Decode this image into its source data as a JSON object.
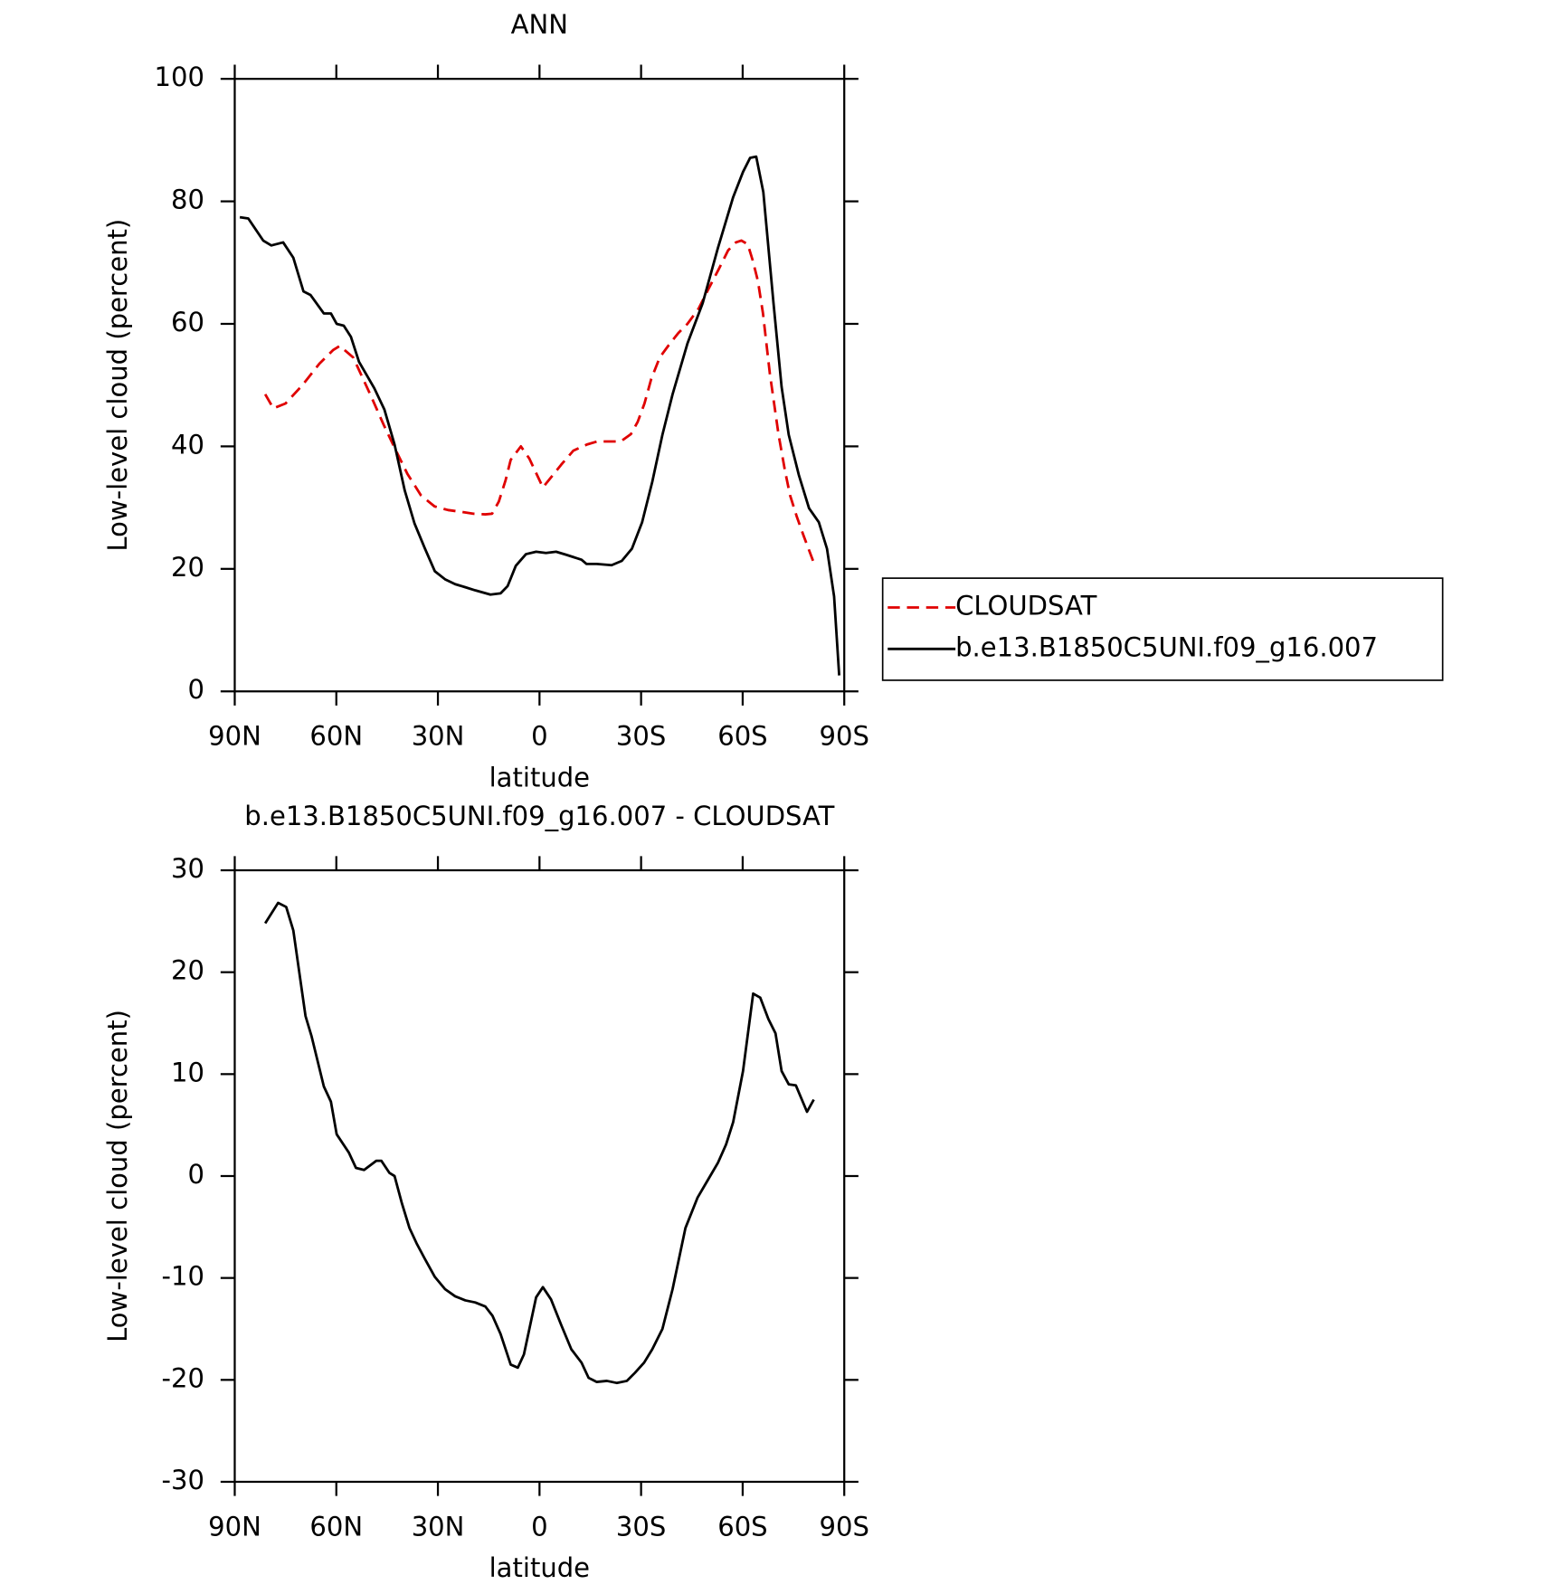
{
  "chart_data": [
    {
      "type": "line",
      "title": "ANN",
      "xlabel": "latitude",
      "ylabel": "Low-level cloud (percent)",
      "xlim": [
        90,
        -90
      ],
      "xticks": [
        {
          "value": 90,
          "label": "90N"
        },
        {
          "value": 60,
          "label": "60N"
        },
        {
          "value": 30,
          "label": "30N"
        },
        0,
        {
          "value": -30,
          "label": "30S"
        },
        {
          "value": -60,
          "label": "60S"
        },
        {
          "value": -90,
          "label": "90S"
        }
      ],
      "ylim": [
        0,
        100
      ],
      "yticks": [
        0,
        20,
        40,
        60,
        80,
        100
      ],
      "legend": "right",
      "series": [
        {
          "name": "CLOUDSAT",
          "color": "#e00000",
          "dashed": true,
          "x": [
            81,
            78.6,
            75,
            70,
            65,
            61,
            59,
            55,
            50,
            46,
            43,
            39,
            35,
            31,
            27,
            23,
            19.5,
            16,
            14,
            12,
            10,
            8.5,
            5.5,
            3,
            -1,
            -3.5,
            -6.4,
            -10,
            -14,
            -17,
            -21,
            -24,
            -27,
            -29,
            -31,
            -33,
            -35.5,
            -38,
            -41,
            -43.7,
            -47,
            -50,
            -53,
            -55.7,
            -58,
            -59.6,
            -61.5,
            -63,
            -64.5,
            -66,
            -68,
            -70.6,
            -72.5,
            -74,
            -76,
            -78,
            -81
          ],
          "values": [
            48.5,
            46.2,
            47,
            50,
            53.5,
            55.7,
            56.4,
            54.5,
            48.5,
            43.5,
            40,
            35.5,
            32,
            30.2,
            29.6,
            29.3,
            29,
            28.9,
            29,
            31,
            34.5,
            37.8,
            40,
            38,
            33.3,
            35,
            37,
            39.3,
            40.3,
            40.8,
            40.8,
            40.8,
            42,
            44,
            47,
            51,
            54.5,
            56.4,
            58.5,
            60,
            62.5,
            65.8,
            69,
            72,
            73.3,
            73.6,
            73,
            70.3,
            67,
            61.7,
            52,
            41.9,
            36,
            32,
            28.5,
            25.4,
            21
          ]
        },
        {
          "name": "b.e13.B1850C5UNI.f09_g16.007",
          "color": "#000000",
          "dashed": false,
          "x": [
            88.5,
            86,
            81.6,
            79.2,
            75.7,
            72.7,
            69.7,
            67.6,
            63.7,
            61.6,
            59.9,
            57.8,
            55.7,
            53.3,
            48.8,
            45.8,
            42.8,
            39.8,
            36.9,
            33.9,
            30.9,
            27.9,
            24.9,
            21.9,
            19,
            14.5,
            11.5,
            9.4,
            7,
            4,
            1,
            -1.9,
            -4.9,
            -7.9,
            -12.4,
            -13.9,
            -16.9,
            -21.3,
            -24.3,
            -27.3,
            -30.3,
            -33.3,
            -36.3,
            -39.3,
            -43.7,
            -48.2,
            -52.7,
            -57.2,
            -60.1,
            -62.2,
            -64,
            -66.1,
            -69.1,
            -71.5,
            -73.6,
            -76.6,
            -79.6,
            -82.5,
            -84.9,
            -87,
            -88.5
          ],
          "values": [
            77.4,
            77.2,
            73.6,
            72.8,
            73.3,
            70.8,
            65.3,
            64.7,
            61.7,
            61.7,
            60,
            59.7,
            57.9,
            53.8,
            49.5,
            46,
            40.3,
            32.8,
            27.4,
            23.4,
            19.6,
            18.3,
            17.5,
            17,
            16.5,
            15.8,
            16,
            17.2,
            20.5,
            22.4,
            22.8,
            22.6,
            22.8,
            22.3,
            21.5,
            20.8,
            20.8,
            20.6,
            21.3,
            23.3,
            27.6,
            34.2,
            41.9,
            48.5,
            56.8,
            63.4,
            72.4,
            80.7,
            84.8,
            87.1,
            87.3,
            81.5,
            63.4,
            49.7,
            41.9,
            35.3,
            29.9,
            27.6,
            23.3,
            15.5,
            2.6
          ]
        }
      ]
    },
    {
      "type": "line",
      "title": "b.e13.B1850C5UNI.f09_g16.007 - CLOUDSAT",
      "xlabel": "latitude",
      "ylabel": "Low-level cloud (percent)",
      "xlim": [
        90,
        -90
      ],
      "xticks": [
        {
          "value": 90,
          "label": "90N"
        },
        {
          "value": 60,
          "label": "60N"
        },
        {
          "value": 30,
          "label": "30N"
        },
        0,
        {
          "value": -30,
          "label": "30S"
        },
        {
          "value": -60,
          "label": "60S"
        },
        {
          "value": -90,
          "label": "90S"
        }
      ],
      "ylim": [
        -30,
        30
      ],
      "yticks": [
        -30,
        -20,
        -10,
        0,
        10,
        20,
        30
      ],
      "color": "#000000",
      "x": [
        81,
        77.2,
        74.8,
        72.7,
        71.2,
        69.1,
        67.3,
        63.7,
        61.6,
        59.9,
        56.3,
        54.2,
        51.8,
        48.2,
        46.7,
        44.3,
        42.8,
        40.7,
        38.4,
        36.3,
        33.9,
        30.9,
        27.9,
        24.9,
        21.9,
        19,
        16,
        13.9,
        11.5,
        8.5,
        6.4,
        4.6,
        1,
        -1,
        -3.4,
        -6.4,
        -9.4,
        -12.4,
        -14.5,
        -16.9,
        -19.9,
        -22.8,
        -25.8,
        -28.2,
        -30.9,
        -33.3,
        -36.3,
        -39.3,
        -43.1,
        -46.7,
        -49.7,
        -52.7,
        -55.1,
        -57.2,
        -60.1,
        -63.1,
        -65.2,
        -67.6,
        -69.7,
        -71.5,
        -73.6,
        -75.7,
        -79,
        -81
      ],
      "values": [
        24.8,
        26.8,
        26.4,
        24.1,
        20.6,
        15.7,
        13.7,
        8.8,
        7.3,
        4.1,
        2.3,
        0.8,
        0.6,
        1.5,
        1.5,
        0.3,
        0,
        -2.6,
        -5.1,
        -6.6,
        -8.1,
        -9.9,
        -11.1,
        -11.8,
        -12.2,
        -12.4,
        -12.8,
        -13.7,
        -15.5,
        -18.5,
        -18.8,
        -17.5,
        -11.9,
        -10.9,
        -12.1,
        -14.6,
        -17,
        -18.3,
        -19.8,
        -20.2,
        -20.1,
        -20.3,
        -20.1,
        -19.3,
        -18.3,
        -17,
        -15,
        -11.1,
        -5.1,
        -2.1,
        -0.4,
        1.3,
        3.1,
        5.3,
        10.3,
        17.9,
        17.5,
        15.4,
        14,
        10.3,
        9,
        8.9,
        6.3,
        7.5
      ]
    }
  ]
}
